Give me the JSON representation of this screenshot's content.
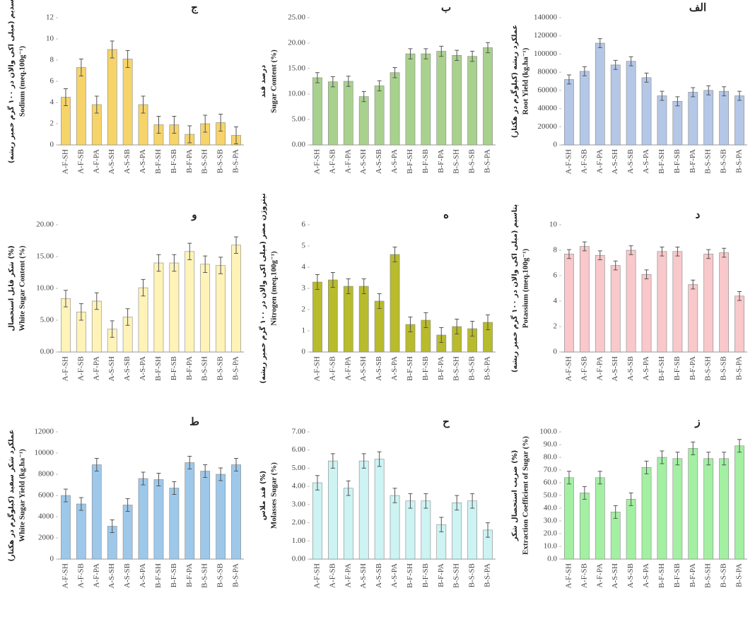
{
  "chart_data": [
    {
      "type": "bar",
      "title": "ج",
      "ylabel_fa": "سدیم (میلی اکی والان در ۱۰۰ گرم خمیر ریشه)",
      "ylabel": "Sodium (meq.100g⁻¹)",
      "color": "#f6d46a",
      "categories": [
        "A-F-SH",
        "A-F-SB",
        "A-F-PA",
        "A-S-SH",
        "A-S-SB",
        "A-S-PA",
        "B-F-SH",
        "B-F-SB",
        "B-F-PA",
        "B-S-SH",
        "B-S-SB",
        "B-S-PA"
      ],
      "values": [
        4.5,
        7.3,
        3.8,
        9.0,
        8.1,
        3.8,
        1.9,
        1.9,
        1.0,
        2.0,
        2.1,
        0.9
      ],
      "errors": [
        0.8,
        0.8,
        0.8,
        0.8,
        0.8,
        0.8,
        0.8,
        0.8,
        0.8,
        0.8,
        0.8,
        0.8
      ],
      "ylim": [
        0,
        12
      ],
      "yticks": [
        0,
        2,
        4,
        6,
        8,
        10,
        12
      ]
    },
    {
      "type": "bar",
      "title": "ب",
      "ylabel_fa": "درصد قند",
      "ylabel": "Sugar Content (%)",
      "color": "#a9d18e",
      "categories": [
        "A-F-SH",
        "A-F-SB",
        "A-F-PA",
        "A-S-SH",
        "A-S-SB",
        "A-S-PA",
        "B-F-SH",
        "B-F-SB",
        "B-F-PA",
        "B-S-SH",
        "B-S-SB",
        "B-S-PA"
      ],
      "values": [
        13.2,
        12.4,
        12.5,
        9.5,
        11.6,
        14.2,
        17.9,
        17.9,
        18.4,
        17.6,
        17.4,
        19.1
      ],
      "errors": [
        1,
        1,
        1,
        1,
        1,
        1,
        1,
        1,
        1,
        1,
        1,
        1
      ],
      "ylim": [
        0,
        25
      ],
      "yticks": [
        {
          "value": 0,
          "label": "0.00"
        },
        {
          "value": 5,
          "label": "5.00"
        },
        {
          "value": 10,
          "label": "10.00"
        },
        {
          "value": 15,
          "label": "15.00"
        },
        {
          "value": 20,
          "label": "20.00"
        },
        {
          "value": 25,
          "label": "25.00"
        }
      ]
    },
    {
      "type": "bar",
      "title": "الف",
      "ylabel_fa": "عملکرد ریشه (کیلوگرم در هکتار)",
      "ylabel": "Root Yield (kg.ha⁻¹)",
      "color": "#b4c7e7",
      "categories": [
        "A-F-SH",
        "A-F-SB",
        "A-F-PA",
        "A-S-SH",
        "A-S-SB",
        "A-S-PA",
        "B-F-SH",
        "B-F-SB",
        "B-F-PA",
        "B-S-SH",
        "B-S-SB",
        "B-S-PA"
      ],
      "values": [
        72000,
        81000,
        112000,
        88000,
        92000,
        74000,
        54000,
        48000,
        58000,
        60000,
        59000,
        54000
      ],
      "errors": [
        5000,
        5000,
        5000,
        5000,
        5000,
        5000,
        5000,
        5000,
        5000,
        5000,
        5000,
        5000
      ],
      "ylim": [
        0,
        140000
      ],
      "yticks": [
        0,
        20000,
        40000,
        60000,
        80000,
        100000,
        120000,
        140000
      ]
    },
    {
      "type": "bar",
      "title": "و",
      "ylabel_fa": "شکر قابل استحصال (%)",
      "ylabel": "White Sugar Content (%)",
      "color": "#fff3b8",
      "categories": [
        "A-F-SH",
        "A-F-SB",
        "A-F-PA",
        "A-S-SH",
        "A-S-SB",
        "A-S-PA",
        "B-F-SH",
        "B-F-SB",
        "B-F-PA",
        "B-S-SH",
        "B-S-SB",
        "B-S-PA"
      ],
      "values": [
        8.4,
        6.3,
        8.0,
        3.6,
        5.5,
        10.1,
        14.0,
        14.0,
        15.8,
        13.8,
        13.6,
        16.8
      ],
      "errors": [
        1.3,
        1.3,
        1.3,
        1.3,
        1.3,
        1.3,
        1.3,
        1.3,
        1.3,
        1.3,
        1.3,
        1.3
      ],
      "ylim": [
        0,
        20
      ],
      "yticks": [
        {
          "value": 0,
          "label": "0.00"
        },
        {
          "value": 5,
          "label": "5.00"
        },
        {
          "value": 10,
          "label": "10.00"
        },
        {
          "value": 15,
          "label": "15.00"
        },
        {
          "value": 20,
          "label": "20.00"
        }
      ]
    },
    {
      "type": "bar",
      "title": "ه",
      "ylabel_fa": "نیتروژن مضر (میلی اکی والان در ۱۰۰ گرم خمیر ریشه)",
      "ylabel": "Nitrogen (meq.100g⁻¹)",
      "color": "#b8bb2c",
      "categories": [
        "A-F-SH",
        "A-F-SB",
        "A-F-PA",
        "A-S-SH",
        "A-S-SB",
        "A-S-PA",
        "B-F-SH",
        "B-F-SB",
        "B-F-PA",
        "B-S-SH",
        "B-S-SB",
        "B-S-PA"
      ],
      "values": [
        3.3,
        3.4,
        3.1,
        3.1,
        2.4,
        4.6,
        1.3,
        1.5,
        0.8,
        1.2,
        1.1,
        1.4
      ],
      "errors": [
        0.35,
        0.35,
        0.35,
        0.35,
        0.35,
        0.35,
        0.35,
        0.35,
        0.35,
        0.35,
        0.35,
        0.35
      ],
      "ylim": [
        0,
        6
      ],
      "yticks": [
        0,
        1,
        2,
        3,
        4,
        5,
        6
      ]
    },
    {
      "type": "bar",
      "title": "د",
      "ylabel_fa": "پتاسیم (میلی اکی والان در ۱۰۰ گرم خمیر ریشه)",
      "ylabel": "Potassium (meq.100g⁻¹)",
      "color": "#f8c8cb",
      "categories": [
        "A-F-SH",
        "A-F-SB",
        "A-F-PA",
        "A-S-SH",
        "A-S-SB",
        "A-S-PA",
        "B-F-SH",
        "B-F-SB",
        "B-F-PA",
        "B-S-SH",
        "B-S-SB",
        "B-S-PA"
      ],
      "values": [
        7.7,
        8.3,
        7.6,
        6.8,
        8.0,
        6.1,
        7.9,
        7.9,
        5.3,
        7.7,
        7.8,
        4.4
      ],
      "errors": [
        0.35,
        0.35,
        0.35,
        0.35,
        0.35,
        0.35,
        0.35,
        0.35,
        0.35,
        0.35,
        0.35,
        0.35
      ],
      "ylim": [
        0,
        10
      ],
      "yticks": [
        0,
        2,
        4,
        6,
        8,
        10
      ]
    },
    {
      "type": "bar",
      "title": "ط",
      "ylabel_fa": "عملکرد شکر سفید (کیلوگرم در هکتار)",
      "ylabel": "White Sugar Yield (kg.ha⁻¹)",
      "color": "#9dc8ea",
      "categories": [
        "A-F-SH",
        "A-F-SB",
        "A-F-PA",
        "A-S-SH",
        "A-S-SB",
        "A-S-PA",
        "B-F-SH",
        "B-F-SB",
        "B-F-PA",
        "B-S-SH",
        "B-S-SB",
        "B-S-PA"
      ],
      "values": [
        6000,
        5200,
        8900,
        3100,
        5100,
        7600,
        7500,
        6700,
        9100,
        8300,
        8000,
        8900
      ],
      "errors": [
        600,
        600,
        600,
        600,
        600,
        600,
        600,
        600,
        600,
        600,
        600,
        600
      ],
      "ylim": [
        0,
        12000
      ],
      "yticks": [
        0,
        2000,
        4000,
        6000,
        8000,
        10000,
        12000
      ]
    },
    {
      "type": "bar",
      "title": "ح",
      "ylabel_fa": "قند ملاس (%)",
      "ylabel": "Molasses Sugar (%)",
      "color": "#cdf3f3",
      "categories": [
        "A-F-SH",
        "A-F-SB",
        "A-F-PA",
        "A-S-SH",
        "A-S-SB",
        "A-S-PA",
        "B-F-SH",
        "B-F-SB",
        "B-F-PA",
        "B-S-SH",
        "B-S-SB",
        "B-S-PA"
      ],
      "values": [
        4.2,
        5.4,
        3.9,
        5.4,
        5.5,
        3.5,
        3.2,
        3.2,
        1.9,
        3.1,
        3.2,
        1.6
      ],
      "errors": [
        0.4,
        0.4,
        0.4,
        0.4,
        0.4,
        0.4,
        0.4,
        0.4,
        0.4,
        0.4,
        0.4,
        0.4
      ],
      "ylim": [
        0,
        7
      ],
      "yticks": [
        {
          "value": 0,
          "label": "0.00"
        },
        {
          "value": 1,
          "label": "1.00"
        },
        {
          "value": 2,
          "label": "2.00"
        },
        {
          "value": 3,
          "label": "3.00"
        },
        {
          "value": 4,
          "label": "4.00"
        },
        {
          "value": 5,
          "label": "5.00"
        },
        {
          "value": 6,
          "label": "6.00"
        },
        {
          "value": 7,
          "label": "7.00"
        }
      ]
    },
    {
      "type": "bar",
      "title": "ز",
      "ylabel_fa": "ضریب استحصال شکر (%)",
      "ylabel": "Extraction Coefficient of Sugar (%)",
      "color": "#a3f0a3",
      "categories": [
        "A-F-SH",
        "A-F-SB",
        "A-F-PA",
        "A-S-SH",
        "A-S-SB",
        "A-S-PA",
        "B-F-SH",
        "B-F-SB",
        "B-F-PA",
        "B-S-SH",
        "B-S-SB",
        "B-S-PA"
      ],
      "values": [
        64,
        52,
        64,
        37,
        47,
        72,
        80,
        79,
        87,
        79,
        79,
        89
      ],
      "errors": [
        5,
        5,
        5,
        5,
        5,
        5,
        5,
        5,
        5,
        5,
        5,
        5
      ],
      "ylim": [
        0,
        100
      ],
      "yticks": [
        {
          "value": 0,
          "label": "0.0"
        },
        {
          "value": 10,
          "label": "10.0"
        },
        {
          "value": 20,
          "label": "20.0"
        },
        {
          "value": 30,
          "label": "30.0"
        },
        {
          "value": 40,
          "label": "40.0"
        },
        {
          "value": 50,
          "label": "50.0"
        },
        {
          "value": 60,
          "label": "60.0"
        },
        {
          "value": 70,
          "label": "70.0"
        },
        {
          "value": 80,
          "label": "80.0"
        },
        {
          "value": 90,
          "label": "90.0"
        },
        {
          "value": 100,
          "label": "100.0"
        }
      ]
    }
  ]
}
